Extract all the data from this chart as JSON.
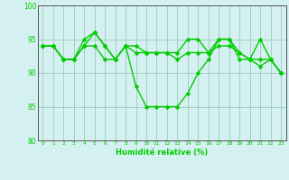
{
  "x": [
    0,
    1,
    2,
    3,
    4,
    5,
    6,
    7,
    8,
    9,
    10,
    11,
    12,
    13,
    14,
    15,
    16,
    17,
    18,
    19,
    20,
    21,
    22,
    23
  ],
  "line1": [
    94,
    94,
    92,
    92,
    95,
    96,
    94,
    92,
    94,
    88,
    85,
    85,
    85,
    85,
    87,
    90,
    92,
    95,
    95,
    92,
    92,
    91,
    92,
    90
  ],
  "line2": [
    94,
    94,
    92,
    92,
    94,
    94,
    92,
    92,
    94,
    94,
    93,
    93,
    93,
    92,
    93,
    93,
    93,
    94,
    94,
    93,
    92,
    92,
    92,
    90
  ],
  "line3": [
    94,
    94,
    92,
    92,
    94,
    96,
    94,
    92,
    94,
    93,
    93,
    93,
    93,
    93,
    95,
    95,
    93,
    95,
    95,
    93,
    92,
    95,
    92,
    90
  ],
  "xlabel": "Humidité relative (%)",
  "ylim": [
    80,
    100
  ],
  "xlim": [
    -0.5,
    23.5
  ],
  "yticks": [
    80,
    85,
    90,
    95,
    100
  ],
  "xticks": [
    0,
    1,
    2,
    3,
    4,
    5,
    6,
    7,
    8,
    9,
    10,
    11,
    12,
    13,
    14,
    15,
    16,
    17,
    18,
    19,
    20,
    21,
    22,
    23
  ],
  "line_color": "#00cc00",
  "bg_color": "#d5f0f0",
  "grid_color": "#99ccbb",
  "marker": "D",
  "marker_size": 2.5,
  "line_width": 1.0
}
